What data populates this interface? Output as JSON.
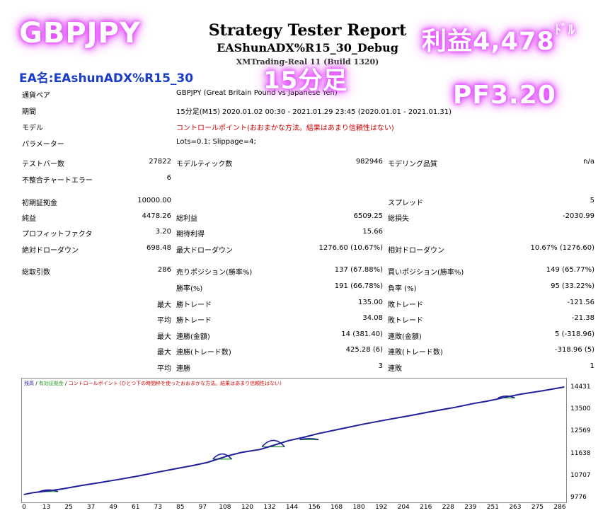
{
  "overlay": {
    "symbol": "GBPJPY",
    "profit_text": "利益4,478",
    "profit_unit": "ﾄﾞﾙ",
    "timeframe": "15分足",
    "pf": "PF3.20",
    "ea_name": "EA名:EAshunADX%R15_30"
  },
  "report": {
    "title": "Strategy Tester Report",
    "subtitle": "EAShunADX%R15_30_Debug",
    "server": "XMTrading-Real 11 (Build 1320)"
  },
  "info": {
    "pair_label": "通貨ペア",
    "pair_value": "GBPJPY (Great Britain Pound vs Japanese Yen)",
    "period_label": "期間",
    "period_value": "15分足(M15) 2020.01.02 00:30 - 2021.01.29 23:45 (2020.01.01 - 2021.01.31)",
    "model_label": "モデル",
    "model_value": "コントロールポイント(おおまかな方法。結果はあまり信頼性はない)",
    "params_label": "パラメーター",
    "params_value": "Lots=0.1; Slippage=4;"
  },
  "stats": {
    "bars_label": "テストバー数",
    "bars_value": "27822",
    "ticks_label": "モデルティック数",
    "ticks_value": "982946",
    "quality_label": "モデリング品質",
    "quality_value": "n/a",
    "mismatch_label": "不整合チャートエラー",
    "mismatch_value": "6",
    "deposit_label": "初期証拠金",
    "deposit_value": "10000.00",
    "spread_label": "スプレッド",
    "spread_value": "5",
    "net_label": "純益",
    "net_value": "4478.26",
    "gross_profit_label": "総利益",
    "gross_profit_value": "6509.25",
    "gross_loss_label": "総損失",
    "gross_loss_value": "-2030.99",
    "pf_label": "プロフィットファクタ",
    "pf_value": "3.20",
    "expected_label": "期待利得",
    "expected_value": "15.66",
    "abs_dd_label": "絶対ドローダウン",
    "abs_dd_value": "698.48",
    "max_dd_label": "最大ドローダウン",
    "max_dd_value": "1276.60 (10.67%)",
    "rel_dd_label": "相対ドローダウン",
    "rel_dd_value": "10.67% (1276.60)",
    "trades_label": "総取引数",
    "trades_value": "286",
    "short_label": "売りポジション(勝率%)",
    "short_value": "137 (67.88%)",
    "long_label": "買いポジション(勝率%)",
    "long_value": "149 (65.77%)",
    "win_label": "勝率(%)",
    "win_value": "191 (66.78%)",
    "loss_label": "負率 (%)",
    "loss_value": "95 (33.22%)",
    "max_prefix": "最大",
    "avg_prefix": "平均",
    "largest_win_label": "勝トレード",
    "largest_win_value": "135.00",
    "largest_loss_label": "敗トレード",
    "largest_loss_value": "-121.56",
    "avg_win_label": "勝トレード",
    "avg_win_value": "34.08",
    "avg_loss_label": "敗トレード",
    "avg_loss_value": "-21.38",
    "max_cons_win_label": "連勝(金額)",
    "max_cons_win_value": "14 (381.40)",
    "max_cons_loss_label": "連敗(金額)",
    "max_cons_loss_value": "5 (-318.96)",
    "max_cons_profit_label": "連勝(トレード数)",
    "max_cons_profit_value": "425.28 (6)",
    "max_cons_lossamt_label": "連敗(トレード数)",
    "max_cons_lossamt_value": "-318.96 (5)",
    "avg_cons_win_label": "連勝",
    "avg_cons_win_value": "3",
    "avg_cons_loss_label": "連敗",
    "avg_cons_loss_value": "1"
  },
  "chart_legend": {
    "balance": "残高",
    "sep1": " / ",
    "equity": "有効証拠金",
    "sep2": " / ",
    "note": "コントロールポイント (ひとつ下の時間枠を使ったおおまかな方法。結果はあまり信頼性はない)"
  },
  "colors": {
    "balance": "#1f1f9c",
    "equity": "#2a9d2a",
    "glow": "#e24bff"
  },
  "chart_data": {
    "type": "line",
    "x_ticks": [
      "0",
      "13",
      "25",
      "37",
      "49",
      "61",
      "73",
      "85",
      "97",
      "108",
      "120",
      "132",
      "144",
      "156",
      "168",
      "180",
      "192",
      "204",
      "216",
      "228",
      "239",
      "251",
      "263",
      "275",
      "286"
    ],
    "y_ticks": [
      "14431",
      "13500",
      "12569",
      "11638",
      "10707",
      "9776"
    ],
    "xlim": [
      0,
      286
    ],
    "ylim": [
      9776,
      14431
    ],
    "series": [
      {
        "name": "残高",
        "x": [
          0,
          5,
          13,
          20,
          30,
          40,
          50,
          60,
          70,
          80,
          90,
          97,
          108,
          115,
          125,
          132,
          140,
          148,
          156,
          168,
          180,
          192,
          204,
          216,
          228,
          239,
          245,
          251,
          256,
          263,
          275,
          286
        ],
        "y": [
          9930,
          10010,
          10080,
          10160,
          10300,
          10430,
          10560,
          10700,
          10860,
          11010,
          11160,
          11280,
          11560,
          11700,
          11830,
          12000,
          12200,
          12340,
          12500,
          12700,
          12900,
          13080,
          13250,
          13430,
          13600,
          13780,
          13860,
          13960,
          14050,
          14160,
          14310,
          14460
        ]
      }
    ],
    "equity_bumps": [
      {
        "x0": 8,
        "x1": 18,
        "peak": 10120,
        "base": 10050
      },
      {
        "x0": 100,
        "x1": 110,
        "peak": 11640,
        "base": 11420
      },
      {
        "x0": 126,
        "x1": 138,
        "peak": 12210,
        "base": 11940
      },
      {
        "x0": 146,
        "x1": 156,
        "peak": 12290,
        "base": 12240
      },
      {
        "x0": 251,
        "x1": 260,
        "peak": 14080,
        "base": 14000
      }
    ]
  }
}
